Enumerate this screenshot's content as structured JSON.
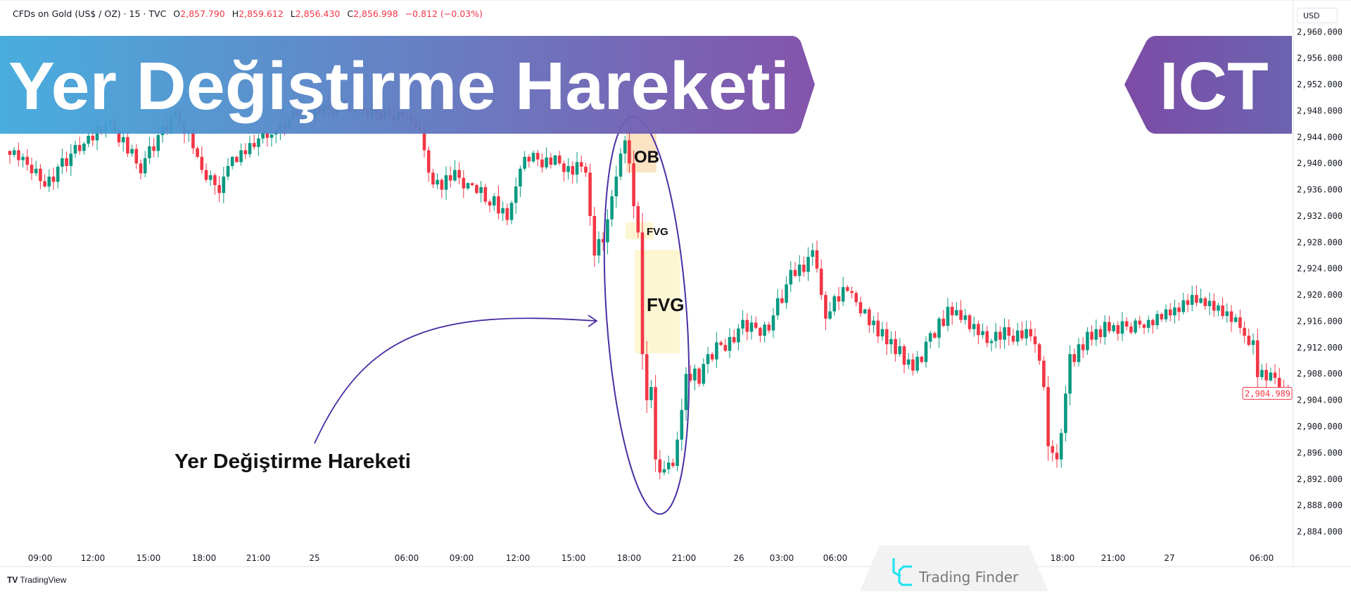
{
  "legend": {
    "symbol": "CFDs on Gold (US$ / OZ) · 15 · TVC",
    "open_label": "O",
    "open": "2,857.790",
    "high_label": "H",
    "high": "2,859.612",
    "low_label": "L",
    "low": "2,856.430",
    "close_label": "C",
    "close": "2,856.998",
    "change": "−0.812 (−0.03%)"
  },
  "currency": "USD",
  "banner": {
    "title": "Yer Değiştirme Hareketi",
    "tag": "ICT",
    "gradient_start": "#3fa9dc",
    "gradient_end": "#7d4ba6"
  },
  "annotations": {
    "ob": "OB",
    "fvg_small": "FVG",
    "fvg_large": "FVG",
    "callout": "Yer Değiştirme Hareketi",
    "ellipse_color": "#4b2ea3",
    "ob_color": "#fbe3c4",
    "fvg_color": "#fdf6d2"
  },
  "footer": {
    "tradingview": "TradingView",
    "watermark": "Trading Finder"
  },
  "chart_data": {
    "type": "candlestick",
    "interval": "15",
    "colors": {
      "up": "#089981",
      "down": "#f23645"
    },
    "ylim": [
      2882,
      2962
    ],
    "y_ticks": [
      "2,960.000",
      "2,956.000",
      "2,952.000",
      "2,948.000",
      "2,944.000",
      "2,940.000",
      "2,936.000",
      "2,932.000",
      "2,928.000",
      "2,924.000",
      "2,920.000",
      "2,916.000",
      "2,912.000",
      "2,908.000",
      "2,904.000",
      "2,900.000",
      "2,896.000",
      "2,892.000",
      "2,888.000",
      "2,884.000"
    ],
    "x_ticks": [
      "09:00",
      "12:00",
      "15:00",
      "18:00",
      "21:00",
      "25",
      "06:00",
      "09:00",
      "12:00",
      "15:00",
      "18:00",
      "21:00",
      "26",
      "03:00",
      "06:00",
      "18:00",
      "21:00",
      "27",
      "06:00"
    ],
    "last_price": "2,904.989",
    "closes": [
      2941.3,
      2942,
      2940.5,
      2941,
      2939.8,
      2938.5,
      2939.2,
      2937.3,
      2936.5,
      2938,
      2937.2,
      2939.5,
      2940.8,
      2939.6,
      2941.5,
      2942.8,
      2941.9,
      2943,
      2944.2,
      2943.5,
      2945.6,
      2944.8,
      2946,
      2946.5,
      2945,
      2943.2,
      2944,
      2941.5,
      2942.2,
      2940,
      2938.5,
      2940.8,
      2942.6,
      2941.9,
      2944.3,
      2945.8,
      2945,
      2947,
      2948,
      2946.2,
      2944.5,
      2945,
      2942.3,
      2941,
      2939,
      2937.5,
      2938.2,
      2936.7,
      2935.5,
      2938,
      2939.6,
      2941,
      2940.2,
      2942,
      2941.4,
      2943.1,
      2942.5,
      2943.8,
      2944.6,
      2943.9,
      2944.4,
      2945,
      2946,
      2945.3,
      2946.8,
      2948,
      2947.2,
      2946.5,
      2947.8,
      2947,
      2948.5,
      2947.6,
      2949,
      2948.2,
      2947.5,
      2948.8,
      2949.5,
      2948.4,
      2947.9,
      2949.1,
      2948.6,
      2948,
      2947.2,
      2948.3,
      2947.6,
      2946.8,
      2948,
      2947.4,
      2946.6,
      2947.8,
      2947.1,
      2947,
      2946.3,
      2945.5,
      2945,
      2942,
      2938.6,
      2936.8,
      2937.5,
      2936,
      2938.2,
      2937.4,
      2939,
      2937.8,
      2936.2,
      2937,
      2936.7,
      2935.5,
      2936.4,
      2934.2,
      2933.6,
      2935,
      2932.4,
      2933.2,
      2931.4,
      2934,
      2936.5,
      2939.2,
      2941,
      2940.3,
      2941.6,
      2940.6,
      2939.4,
      2940.9,
      2939.8,
      2941.2,
      2940,
      2938.7,
      2939.6,
      2938.3,
      2940.2,
      2939.5,
      2938.6,
      2932,
      2926,
      2928.5,
      2928,
      2931.5,
      2935,
      2938,
      2941.5,
      2943.5,
      2940,
      2933.5,
      2929.5,
      2911,
      2904,
      2906,
      2895,
      2893,
      2893.5,
      2894.5,
      2894,
      2898,
      2902.5,
      2908,
      2907,
      2908.8,
      2906.5,
      2909.5,
      2911,
      2910.2,
      2912.8,
      2912.4,
      2911.5,
      2913.6,
      2912.8,
      2914.9,
      2916.2,
      2914.4,
      2915.8,
      2915,
      2913.8,
      2915.5,
      2914.6,
      2916.9,
      2919.5,
      2918.8,
      2921.6,
      2923.8,
      2922.9,
      2924.6,
      2923.5,
      2925.8,
      2926.8,
      2924,
      2920,
      2916.4,
      2917.5,
      2919.8,
      2919,
      2921.2,
      2920.6,
      2920.3,
      2918.9,
      2917.2,
      2917.8,
      2915.4,
      2916.1,
      2913.7,
      2914.8,
      2912.5,
      2913.3,
      2911,
      2912.2,
      2909.4,
      2910.2,
      2908.5,
      2910.6,
      2909.8,
      2912.9,
      2914.2,
      2913.5,
      2916.4,
      2915.3,
      2918.2,
      2916.9,
      2917.7,
      2916.2,
      2916.9,
      2914.8,
      2915.6,
      2913.9,
      2914.5,
      2912.7,
      2913,
      2914.4,
      2913.2,
      2915.1,
      2913.8,
      2912.9,
      2914.6,
      2913.4,
      2914.8,
      2913.7,
      2912.5,
      2910,
      2906,
      2897,
      2896,
      2895,
      2899,
      2905,
      2911,
      2909.8,
      2912.5,
      2911.6,
      2914.4,
      2913.2,
      2914.8,
      2913.6,
      2915.9,
      2914.5,
      2915.4,
      2914.1,
      2916,
      2915.2,
      2914.3,
      2916.1,
      2915.5,
      2915,
      2916.2,
      2915.4,
      2917.1,
      2916.3,
      2917.8,
      2916.9,
      2918.1,
      2917.4,
      2919.2,
      2918.5,
      2920,
      2918.8,
      2919.5,
      2918.3,
      2919.1,
      2917.6,
      2918.4,
      2916.8,
      2917.5,
      2915.9,
      2916.6,
      2915,
      2913.8,
      2912.4,
      2913.1,
      2907.5,
      2908.6,
      2907,
      2908.2,
      2907.4,
      2906,
      2905.5,
      2904.989
    ]
  }
}
